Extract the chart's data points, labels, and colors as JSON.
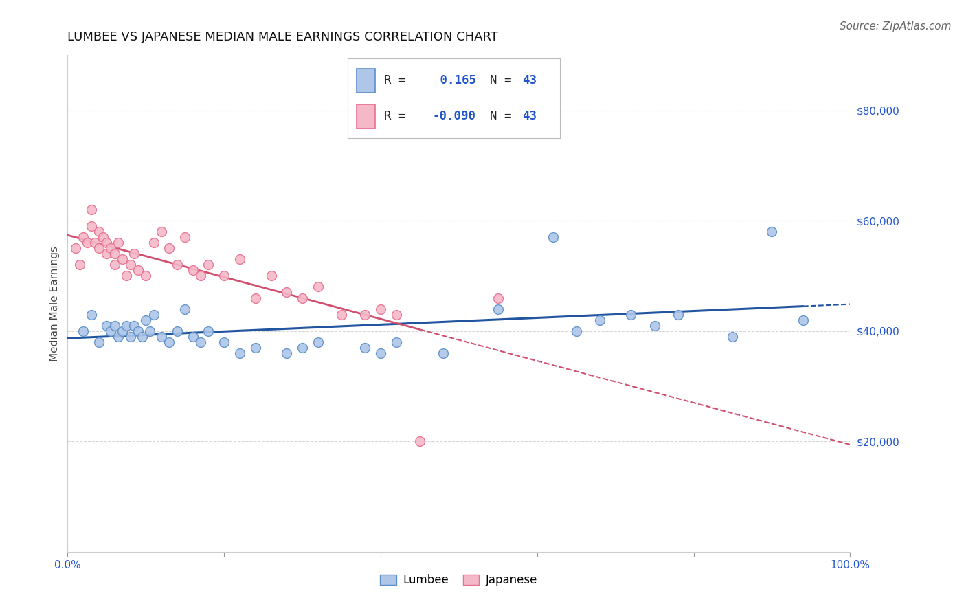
{
  "title": "LUMBEE VS JAPANESE MEDIAN MALE EARNINGS CORRELATION CHART",
  "source": "Source: ZipAtlas.com",
  "ylabel": "Median Male Earnings",
  "xlim": [
    0,
    1
  ],
  "ylim": [
    0,
    90000
  ],
  "yticks": [
    20000,
    40000,
    60000,
    80000
  ],
  "ytick_labels": [
    "$20,000",
    "$40,000",
    "$60,000",
    "$80,000"
  ],
  "R_lumbee": 0.165,
  "R_japanese": -0.09,
  "N_lumbee": 43,
  "N_japanese": 43,
  "lumbee_color": "#aec6e8",
  "japanese_color": "#f4b8c8",
  "lumbee_edge_color": "#5b8fc9",
  "japanese_edge_color": "#e87090",
  "lumbee_line_color": "#2255a0",
  "japanese_line_color": "#d05070",
  "background_color": "#ffffff",
  "grid_color": "#cccccc",
  "lumbee_x": [
    0.02,
    0.03,
    0.04,
    0.05,
    0.055,
    0.06,
    0.065,
    0.07,
    0.075,
    0.08,
    0.085,
    0.09,
    0.095,
    0.1,
    0.105,
    0.11,
    0.12,
    0.13,
    0.14,
    0.15,
    0.16,
    0.17,
    0.18,
    0.2,
    0.22,
    0.24,
    0.28,
    0.3,
    0.32,
    0.38,
    0.4,
    0.42,
    0.48,
    0.55,
    0.62,
    0.65,
    0.68,
    0.72,
    0.75,
    0.78,
    0.85,
    0.9,
    0.94
  ],
  "lumbee_y": [
    40000,
    43000,
    38000,
    41000,
    40000,
    41000,
    39000,
    40000,
    41000,
    39000,
    41000,
    40000,
    39000,
    42000,
    40000,
    43000,
    39000,
    38000,
    40000,
    44000,
    39000,
    38000,
    40000,
    38000,
    36000,
    37000,
    36000,
    37000,
    38000,
    37000,
    36000,
    38000,
    36000,
    44000,
    57000,
    40000,
    42000,
    43000,
    41000,
    43000,
    39000,
    58000,
    42000
  ],
  "japanese_x": [
    0.01,
    0.015,
    0.02,
    0.025,
    0.03,
    0.03,
    0.035,
    0.04,
    0.04,
    0.045,
    0.05,
    0.05,
    0.055,
    0.06,
    0.06,
    0.065,
    0.07,
    0.075,
    0.08,
    0.085,
    0.09,
    0.1,
    0.11,
    0.12,
    0.13,
    0.14,
    0.15,
    0.16,
    0.17,
    0.18,
    0.2,
    0.22,
    0.24,
    0.26,
    0.28,
    0.3,
    0.32,
    0.35,
    0.38,
    0.4,
    0.42,
    0.45,
    0.55
  ],
  "japanese_y": [
    55000,
    52000,
    57000,
    56000,
    59000,
    62000,
    56000,
    58000,
    55000,
    57000,
    56000,
    54000,
    55000,
    54000,
    52000,
    56000,
    53000,
    50000,
    52000,
    54000,
    51000,
    50000,
    56000,
    58000,
    55000,
    52000,
    57000,
    51000,
    50000,
    52000,
    50000,
    53000,
    46000,
    50000,
    47000,
    46000,
    48000,
    43000,
    43000,
    44000,
    43000,
    20000,
    46000
  ],
  "title_fontsize": 13,
  "axis_label_fontsize": 11,
  "tick_fontsize": 11,
  "source_fontsize": 11,
  "marker_size": 100,
  "lumbee_line_end": 0.94,
  "japanese_line_end": 0.55,
  "line_dash_start_lumbee": 0.94,
  "line_dash_start_japanese": 0.45
}
